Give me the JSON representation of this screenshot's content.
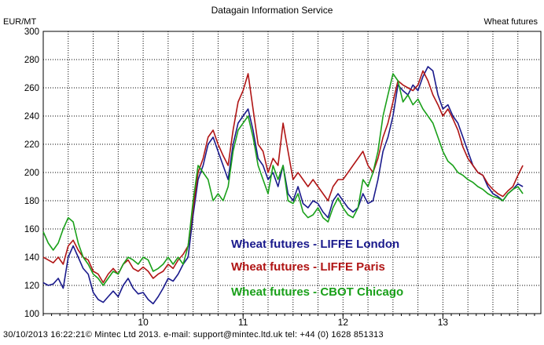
{
  "header": {
    "title": "Datagain Information Service",
    "right_label": "Wheat futures",
    "unit": "EUR/MT"
  },
  "footer": {
    "text": "30/10/2013 16:22:21© Mintec Ltd 2013. e-mail: support@mintec.ltd.uk tel: +44  (0)  1628 851313"
  },
  "colors": {
    "london": "#1a1a8c",
    "paris": "#b01515",
    "chicago": "#1aa01a",
    "grid": "#000000",
    "frame": "#000000"
  },
  "chart_data": {
    "type": "line",
    "xlabel": "",
    "ylabel": "EUR/MT",
    "ylim": [
      100,
      300
    ],
    "yticks": [
      100,
      120,
      140,
      160,
      180,
      200,
      220,
      240,
      260,
      280,
      300
    ],
    "xlim": [
      2009.0,
      2013.98
    ],
    "xticks": [
      {
        "label": "10",
        "value": 2010.0
      },
      {
        "label": "11",
        "value": 2011.0
      },
      {
        "label": "12",
        "value": 2012.0
      },
      {
        "label": "13",
        "value": 2013.0
      }
    ],
    "grid": true,
    "legend": "center",
    "series": [
      {
        "name": "Wheat futures - LIFFE London",
        "color": "#1a1a8c",
        "points": [
          [
            2009.0,
            122
          ],
          [
            2009.05,
            120
          ],
          [
            2009.1,
            121
          ],
          [
            2009.15,
            125
          ],
          [
            2009.2,
            118
          ],
          [
            2009.25,
            140
          ],
          [
            2009.3,
            148
          ],
          [
            2009.35,
            140
          ],
          [
            2009.4,
            132
          ],
          [
            2009.45,
            128
          ],
          [
            2009.5,
            115
          ],
          [
            2009.55,
            110
          ],
          [
            2009.6,
            108
          ],
          [
            2009.65,
            112
          ],
          [
            2009.7,
            116
          ],
          [
            2009.75,
            112
          ],
          [
            2009.8,
            120
          ],
          [
            2009.85,
            125
          ],
          [
            2009.9,
            118
          ],
          [
            2009.95,
            114
          ],
          [
            2010.0,
            115
          ],
          [
            2010.05,
            110
          ],
          [
            2010.1,
            107
          ],
          [
            2010.15,
            112
          ],
          [
            2010.2,
            118
          ],
          [
            2010.25,
            125
          ],
          [
            2010.3,
            123
          ],
          [
            2010.35,
            128
          ],
          [
            2010.4,
            135
          ],
          [
            2010.45,
            140
          ],
          [
            2010.5,
            170
          ],
          [
            2010.55,
            195
          ],
          [
            2010.6,
            205
          ],
          [
            2010.65,
            220
          ],
          [
            2010.7,
            225
          ],
          [
            2010.75,
            215
          ],
          [
            2010.8,
            205
          ],
          [
            2010.85,
            195
          ],
          [
            2010.9,
            220
          ],
          [
            2010.95,
            235
          ],
          [
            2011.0,
            240
          ],
          [
            2011.05,
            245
          ],
          [
            2011.1,
            230
          ],
          [
            2011.15,
            210
          ],
          [
            2011.2,
            205
          ],
          [
            2011.25,
            195
          ],
          [
            2011.3,
            200
          ],
          [
            2011.35,
            190
          ],
          [
            2011.4,
            205
          ],
          [
            2011.45,
            185
          ],
          [
            2011.5,
            180
          ],
          [
            2011.55,
            190
          ],
          [
            2011.6,
            178
          ],
          [
            2011.65,
            175
          ],
          [
            2011.7,
            180
          ],
          [
            2011.75,
            178
          ],
          [
            2011.8,
            172
          ],
          [
            2011.85,
            168
          ],
          [
            2011.9,
            180
          ],
          [
            2011.95,
            185
          ],
          [
            2012.0,
            180
          ],
          [
            2012.05,
            175
          ],
          [
            2012.1,
            172
          ],
          [
            2012.15,
            175
          ],
          [
            2012.2,
            185
          ],
          [
            2012.25,
            178
          ],
          [
            2012.3,
            180
          ],
          [
            2012.35,
            195
          ],
          [
            2012.4,
            215
          ],
          [
            2012.45,
            225
          ],
          [
            2012.5,
            240
          ],
          [
            2012.55,
            262
          ],
          [
            2012.6,
            258
          ],
          [
            2012.65,
            255
          ],
          [
            2012.7,
            262
          ],
          [
            2012.75,
            258
          ],
          [
            2012.8,
            268
          ],
          [
            2012.85,
            275
          ],
          [
            2012.9,
            272
          ],
          [
            2012.95,
            255
          ],
          [
            2013.0,
            245
          ],
          [
            2013.05,
            248
          ],
          [
            2013.1,
            240
          ],
          [
            2013.15,
            235
          ],
          [
            2013.2,
            225
          ],
          [
            2013.25,
            215
          ],
          [
            2013.3,
            205
          ],
          [
            2013.35,
            200
          ],
          [
            2013.4,
            198
          ],
          [
            2013.45,
            190
          ],
          [
            2013.5,
            185
          ],
          [
            2013.55,
            183
          ],
          [
            2013.6,
            180
          ],
          [
            2013.65,
            185
          ],
          [
            2013.7,
            188
          ],
          [
            2013.75,
            192
          ],
          [
            2013.8,
            190
          ]
        ]
      },
      {
        "name": "Wheat futures - LIFFE Paris",
        "color": "#b01515",
        "points": [
          [
            2009.0,
            140
          ],
          [
            2009.05,
            138
          ],
          [
            2009.1,
            136
          ],
          [
            2009.15,
            140
          ],
          [
            2009.2,
            135
          ],
          [
            2009.25,
            148
          ],
          [
            2009.3,
            152
          ],
          [
            2009.35,
            145
          ],
          [
            2009.4,
            140
          ],
          [
            2009.45,
            138
          ],
          [
            2009.5,
            130
          ],
          [
            2009.55,
            128
          ],
          [
            2009.6,
            122
          ],
          [
            2009.65,
            128
          ],
          [
            2009.7,
            132
          ],
          [
            2009.75,
            128
          ],
          [
            2009.8,
            135
          ],
          [
            2009.85,
            138
          ],
          [
            2009.9,
            132
          ],
          [
            2009.95,
            130
          ],
          [
            2010.0,
            133
          ],
          [
            2010.05,
            130
          ],
          [
            2010.1,
            125
          ],
          [
            2010.15,
            128
          ],
          [
            2010.2,
            130
          ],
          [
            2010.25,
            135
          ],
          [
            2010.3,
            132
          ],
          [
            2010.35,
            138
          ],
          [
            2010.4,
            142
          ],
          [
            2010.45,
            148
          ],
          [
            2010.5,
            175
          ],
          [
            2010.55,
            200
          ],
          [
            2010.6,
            210
          ],
          [
            2010.65,
            225
          ],
          [
            2010.7,
            230
          ],
          [
            2010.75,
            220
          ],
          [
            2010.8,
            212
          ],
          [
            2010.85,
            205
          ],
          [
            2010.9,
            230
          ],
          [
            2010.95,
            250
          ],
          [
            2011.0,
            258
          ],
          [
            2011.05,
            270
          ],
          [
            2011.1,
            245
          ],
          [
            2011.15,
            220
          ],
          [
            2011.2,
            215
          ],
          [
            2011.25,
            200
          ],
          [
            2011.3,
            210
          ],
          [
            2011.35,
            205
          ],
          [
            2011.4,
            235
          ],
          [
            2011.45,
            215
          ],
          [
            2011.5,
            195
          ],
          [
            2011.55,
            200
          ],
          [
            2011.6,
            195
          ],
          [
            2011.65,
            190
          ],
          [
            2011.7,
            195
          ],
          [
            2011.75,
            190
          ],
          [
            2011.8,
            185
          ],
          [
            2011.85,
            180
          ],
          [
            2011.9,
            190
          ],
          [
            2011.95,
            195
          ],
          [
            2012.0,
            195
          ],
          [
            2012.05,
            200
          ],
          [
            2012.1,
            205
          ],
          [
            2012.15,
            210
          ],
          [
            2012.2,
            215
          ],
          [
            2012.25,
            205
          ],
          [
            2012.3,
            200
          ],
          [
            2012.35,
            210
          ],
          [
            2012.4,
            225
          ],
          [
            2012.45,
            235
          ],
          [
            2012.5,
            250
          ],
          [
            2012.55,
            265
          ],
          [
            2012.6,
            262
          ],
          [
            2012.65,
            260
          ],
          [
            2012.7,
            258
          ],
          [
            2012.75,
            262
          ],
          [
            2012.8,
            272
          ],
          [
            2012.85,
            265
          ],
          [
            2012.9,
            255
          ],
          [
            2012.95,
            248
          ],
          [
            2013.0,
            240
          ],
          [
            2013.05,
            245
          ],
          [
            2013.1,
            238
          ],
          [
            2013.15,
            230
          ],
          [
            2013.2,
            218
          ],
          [
            2013.25,
            210
          ],
          [
            2013.3,
            205
          ],
          [
            2013.35,
            200
          ],
          [
            2013.4,
            198
          ],
          [
            2013.45,
            192
          ],
          [
            2013.5,
            188
          ],
          [
            2013.55,
            185
          ],
          [
            2013.6,
            183
          ],
          [
            2013.65,
            187
          ],
          [
            2013.7,
            190
          ],
          [
            2013.75,
            198
          ],
          [
            2013.8,
            205
          ]
        ]
      },
      {
        "name": "Wheat futures - CBOT Chicago",
        "color": "#1aa01a",
        "points": [
          [
            2009.0,
            158
          ],
          [
            2009.05,
            150
          ],
          [
            2009.1,
            145
          ],
          [
            2009.15,
            150
          ],
          [
            2009.2,
            160
          ],
          [
            2009.25,
            168
          ],
          [
            2009.3,
            165
          ],
          [
            2009.35,
            150
          ],
          [
            2009.4,
            140
          ],
          [
            2009.45,
            135
          ],
          [
            2009.5,
            128
          ],
          [
            2009.55,
            125
          ],
          [
            2009.6,
            120
          ],
          [
            2009.65,
            125
          ],
          [
            2009.7,
            130
          ],
          [
            2009.75,
            128
          ],
          [
            2009.8,
            135
          ],
          [
            2009.85,
            140
          ],
          [
            2009.9,
            138
          ],
          [
            2009.95,
            135
          ],
          [
            2010.0,
            140
          ],
          [
            2010.05,
            138
          ],
          [
            2010.1,
            130
          ],
          [
            2010.15,
            132
          ],
          [
            2010.2,
            135
          ],
          [
            2010.25,
            140
          ],
          [
            2010.3,
            135
          ],
          [
            2010.35,
            140
          ],
          [
            2010.4,
            135
          ],
          [
            2010.45,
            148
          ],
          [
            2010.5,
            180
          ],
          [
            2010.55,
            205
          ],
          [
            2010.6,
            200
          ],
          [
            2010.65,
            195
          ],
          [
            2010.7,
            180
          ],
          [
            2010.75,
            185
          ],
          [
            2010.8,
            180
          ],
          [
            2010.85,
            190
          ],
          [
            2010.9,
            215
          ],
          [
            2010.95,
            230
          ],
          [
            2011.0,
            235
          ],
          [
            2011.05,
            240
          ],
          [
            2011.1,
            225
          ],
          [
            2011.15,
            205
          ],
          [
            2011.2,
            195
          ],
          [
            2011.25,
            185
          ],
          [
            2011.3,
            205
          ],
          [
            2011.35,
            195
          ],
          [
            2011.4,
            205
          ],
          [
            2011.45,
            180
          ],
          [
            2011.5,
            178
          ],
          [
            2011.55,
            185
          ],
          [
            2011.6,
            172
          ],
          [
            2011.65,
            168
          ],
          [
            2011.7,
            170
          ],
          [
            2011.75,
            175
          ],
          [
            2011.8,
            168
          ],
          [
            2011.85,
            165
          ],
          [
            2011.9,
            175
          ],
          [
            2011.95,
            182
          ],
          [
            2012.0,
            175
          ],
          [
            2012.05,
            170
          ],
          [
            2012.1,
            168
          ],
          [
            2012.15,
            175
          ],
          [
            2012.2,
            195
          ],
          [
            2012.25,
            190
          ],
          [
            2012.3,
            200
          ],
          [
            2012.35,
            215
          ],
          [
            2012.4,
            240
          ],
          [
            2012.45,
            255
          ],
          [
            2012.5,
            270
          ],
          [
            2012.55,
            265
          ],
          [
            2012.6,
            250
          ],
          [
            2012.65,
            255
          ],
          [
            2012.7,
            248
          ],
          [
            2012.75,
            252
          ],
          [
            2012.8,
            245
          ],
          [
            2012.85,
            240
          ],
          [
            2012.9,
            235
          ],
          [
            2012.95,
            225
          ],
          [
            2013.0,
            215
          ],
          [
            2013.05,
            208
          ],
          [
            2013.1,
            205
          ],
          [
            2013.15,
            200
          ],
          [
            2013.2,
            198
          ],
          [
            2013.25,
            195
          ],
          [
            2013.3,
            193
          ],
          [
            2013.35,
            190
          ],
          [
            2013.4,
            188
          ],
          [
            2013.45,
            185
          ],
          [
            2013.5,
            183
          ],
          [
            2013.55,
            182
          ],
          [
            2013.6,
            180
          ],
          [
            2013.65,
            185
          ],
          [
            2013.7,
            188
          ],
          [
            2013.75,
            190
          ],
          [
            2013.8,
            185
          ]
        ]
      }
    ]
  }
}
